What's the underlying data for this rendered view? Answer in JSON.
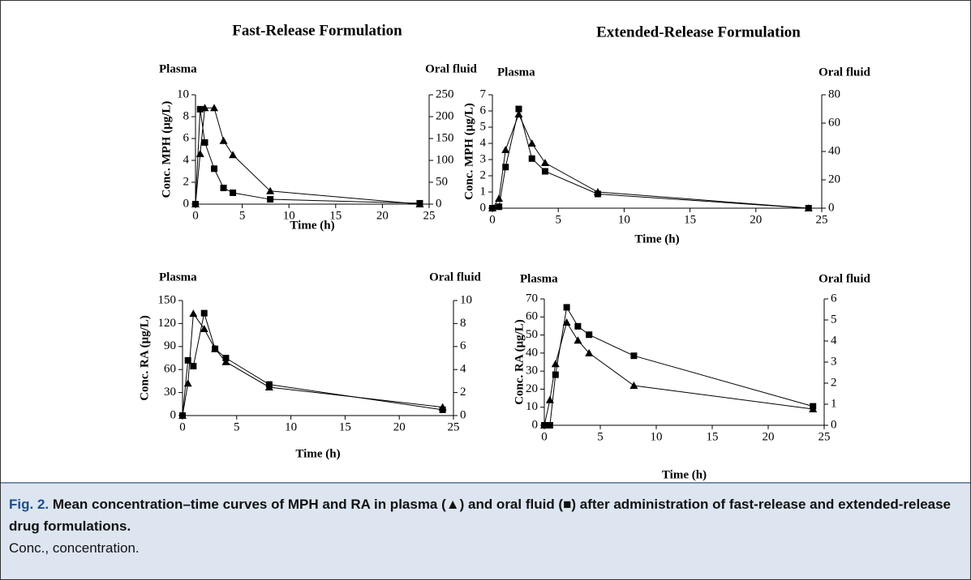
{
  "chart_data": [
    {
      "type": "line",
      "title": "Fast-Release Formulation",
      "y_axis_title": "Plasma",
      "y2_axis_title": "Oral fluid",
      "ylabel": "Conc. MPH (μg/L)",
      "xlabel": "Time (h)",
      "x": [
        0,
        0.5,
        1,
        2,
        3,
        4,
        8,
        24
      ],
      "xlim": [
        0,
        25
      ],
      "xticks": [
        0,
        5,
        10,
        15,
        20,
        25
      ],
      "ylim": [
        0,
        10
      ],
      "yticks": [
        0,
        2,
        4,
        6,
        8,
        10
      ],
      "y2lim": [
        0,
        250
      ],
      "y2ticks": [
        0,
        50,
        100,
        150,
        200,
        250
      ],
      "series": [
        {
          "name": "Plasma",
          "color": "#000000",
          "marker": "triangle",
          "values": [
            0,
            4.6,
            8.8,
            8.8,
            5.8,
            4.5,
            1.2,
            0
          ]
        },
        {
          "name": "Oral fluid",
          "color": "#000000",
          "marker": "square",
          "axis": "y2",
          "values": [
            0,
            217,
            141,
            81,
            37,
            26,
            11,
            2
          ]
        }
      ]
    },
    {
      "type": "line",
      "title": "Extended-Release Formulation",
      "y_axis_title": "Plasma",
      "y2_axis_title": "Oral fluid",
      "ylabel": "Conc. MPH (μg/L)",
      "xlabel": "Time (h)",
      "x": [
        0,
        0.5,
        1,
        2,
        3,
        4,
        8,
        24
      ],
      "xlim": [
        0,
        25
      ],
      "xticks": [
        0,
        5,
        10,
        15,
        20,
        25
      ],
      "ylim": [
        0,
        7
      ],
      "yticks": [
        0,
        1,
        2,
        3,
        4,
        5,
        6,
        7
      ],
      "y2lim": [
        0,
        80
      ],
      "y2ticks": [
        0,
        20,
        40,
        60,
        80
      ],
      "series": [
        {
          "name": "Plasma",
          "color": "#000000",
          "marker": "triangle",
          "values": [
            0,
            0.6,
            3.6,
            5.8,
            4,
            2.8,
            1,
            0
          ]
        },
        {
          "name": "Oral fluid",
          "color": "#000000",
          "marker": "square",
          "axis": "y2",
          "values": [
            0,
            1,
            29,
            70,
            35,
            26,
            10,
            0
          ]
        }
      ]
    },
    {
      "type": "line",
      "y_axis_title": "Plasma",
      "y2_axis_title": "Oral fluid",
      "ylabel": "Conc. RA (μg/L)",
      "xlabel": "Time (h)",
      "x": [
        0,
        0.5,
        1,
        2,
        3,
        4,
        8,
        24
      ],
      "xlim": [
        0,
        25
      ],
      "xticks": [
        0,
        5,
        10,
        15,
        20,
        25
      ],
      "ylim": [
        0,
        150
      ],
      "yticks": [
        0,
        30,
        60,
        90,
        120,
        150
      ],
      "y2lim": [
        0,
        10
      ],
      "y2ticks": [
        0,
        2,
        4,
        6,
        8,
        10
      ],
      "series": [
        {
          "name": "Plasma",
          "color": "#000000",
          "marker": "triangle",
          "values": [
            0,
            42,
            133,
            113,
            87,
            70,
            37,
            11
          ]
        },
        {
          "name": "Oral fluid",
          "color": "#000000",
          "marker": "square",
          "axis": "y2",
          "values": [
            0,
            4.8,
            4.3,
            8.9,
            5.8,
            5,
            2.7,
            0.5
          ]
        }
      ]
    },
    {
      "type": "line",
      "y_axis_title": "Plasma",
      "y2_axis_title": "Oral fluid",
      "ylabel": "Conc. RA (μg/L)",
      "xlabel": "Time (h)",
      "x": [
        0,
        0.5,
        1,
        2,
        3,
        4,
        8,
        24
      ],
      "xlim": [
        0,
        25
      ],
      "xticks": [
        0,
        5,
        10,
        15,
        20,
        25
      ],
      "ylim": [
        0,
        70
      ],
      "yticks": [
        0,
        10,
        20,
        30,
        40,
        50,
        60,
        70
      ],
      "y2lim": [
        0,
        6
      ],
      "y2ticks": [
        0,
        1,
        2,
        3,
        4,
        5,
        6
      ],
      "series": [
        {
          "name": "Plasma",
          "color": "#000000",
          "marker": "triangle",
          "values": [
            0,
            14,
            34,
            57,
            47,
            40,
            22,
            9
          ]
        },
        {
          "name": "Oral fluid",
          "color": "#000000",
          "marker": "square",
          "axis": "y2",
          "values": [
            0,
            0,
            2.4,
            5.6,
            4.7,
            4.3,
            3.3,
            0.9
          ]
        }
      ]
    }
  ],
  "caption": {
    "label": "Fig. 2.",
    "text": "Mean concentration–time curves of MPH and RA in plasma (▲) and oral fluid (■) after administration of fast-release and extended-release drug formulations.",
    "note": "Conc., concentration."
  }
}
